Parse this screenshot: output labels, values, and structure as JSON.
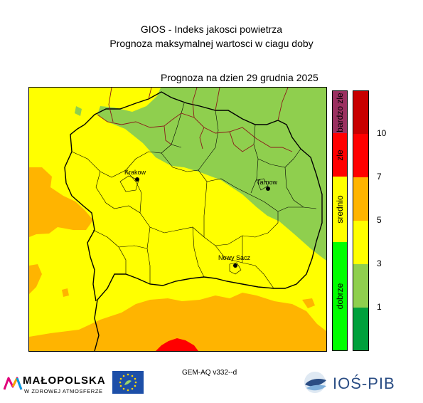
{
  "header": {
    "title": "GIOS - Indeks jakosci powietrza",
    "subtitle": "Prognoza maksymalnej wartosci w ciagu doby",
    "forecast_date": "Prognoza na dzien  29 grudnia 2025"
  },
  "cities": [
    {
      "name": "Krakow"
    },
    {
      "name": "Tarnow"
    },
    {
      "name": "Nowy Sacz"
    }
  ],
  "legend": {
    "categories": [
      {
        "label": "dobrze",
        "color": "#00ff00"
      },
      {
        "label": "srednio",
        "color": "#ffff00"
      },
      {
        "label": "zle",
        "color": "#ff0000"
      },
      {
        "label": "bardzo zle",
        "color": "#9b3060"
      }
    ],
    "classes": [
      {
        "color": "#00a03c"
      },
      {
        "color": "#8fcf4e"
      },
      {
        "color": "#ffff00"
      },
      {
        "color": "#ffb400"
      },
      {
        "color": "#ff0000"
      },
      {
        "color": "#c80000"
      }
    ],
    "ticks": [
      "1",
      "3",
      "5",
      "7",
      "10"
    ]
  },
  "colors": {
    "good": "#8fcf4e",
    "moderate": "#ffff00",
    "elevated": "#ffb400",
    "high": "#ff0000",
    "border_district": "#8b1a1a"
  },
  "footer": {
    "model": "GEM-AQ v332--d",
    "malopolska_name": "MAŁOPOLSKA",
    "malopolska_tagline": "W ZDROWEJ ATMOSFERZE",
    "pib_name": "IOŚ-PIB"
  }
}
